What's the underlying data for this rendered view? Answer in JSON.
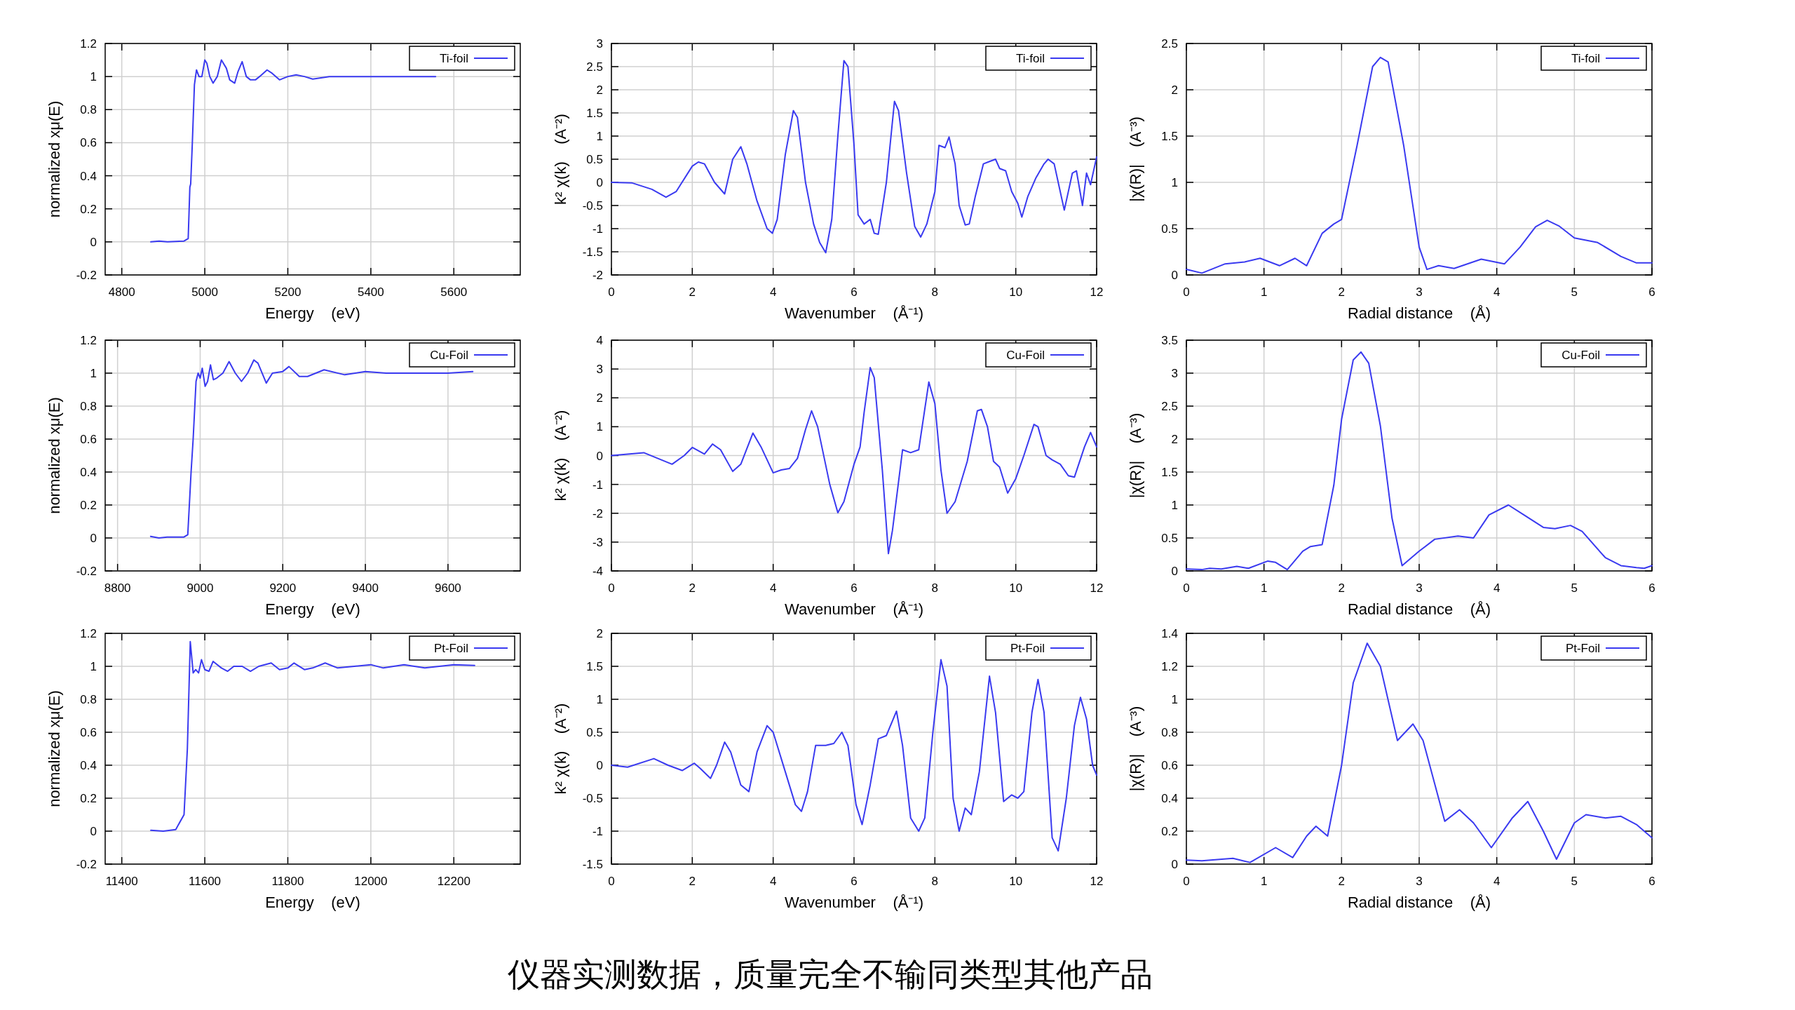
{
  "chart_data": [
    {
      "type": "line",
      "xlabel": "Energy    (eV)",
      "ylabel": "normalized xμ(E)",
      "xlim": [
        4760,
        5760
      ],
      "ylim": [
        -0.2,
        1.2
      ],
      "xticks": [
        4800,
        5000,
        5200,
        5400,
        5600
      ],
      "yticks": [
        -0.2,
        0,
        0.2,
        0.4,
        0.6,
        0.8,
        1,
        1.2
      ],
      "grid": true,
      "legend": "top right",
      "line_style": "solid",
      "x": [
        4870,
        4890,
        4910,
        4950,
        4960,
        4964,
        4966,
        4970,
        4975,
        4980,
        4986,
        4993,
        5000,
        5005,
        5012,
        5020,
        5030,
        5040,
        5052,
        5060,
        5072,
        5080,
        5090,
        5100,
        5110,
        5122,
        5132,
        5150,
        5162,
        5180,
        5200,
        5220,
        5240,
        5260,
        5300,
        5350,
        5400,
        5450,
        5500,
        5556
      ],
      "series": [
        {
          "name": "Ti-foil",
          "color": "#3a3af0",
          "values": [
            0,
            0.005,
            0,
            0.005,
            0.02,
            0.33,
            0.35,
            0.6,
            0.95,
            1.04,
            1.0,
            1.0,
            1.1,
            1.08,
            1.0,
            0.96,
            1.0,
            1.1,
            1.05,
            0.98,
            0.96,
            1.03,
            1.09,
            1.0,
            0.98,
            0.98,
            1.0,
            1.04,
            1.02,
            0.98,
            1.0,
            1.01,
            1.0,
            0.985,
            1.0,
            1.0,
            1.0,
            1.0,
            1.0,
            1.0
          ]
        }
      ]
    },
    {
      "type": "line",
      "xlabel": "Wavenumber    (Å⁻¹)",
      "ylabel": "k² χ(k)    (A⁻²)",
      "xlim": [
        0,
        12
      ],
      "ylim": [
        -2,
        3
      ],
      "xticks": [
        0,
        2,
        4,
        6,
        8,
        10,
        12
      ],
      "yticks": [
        -2,
        -1.5,
        -1,
        -0.5,
        0,
        0.5,
        1,
        1.5,
        2,
        2.5,
        3
      ],
      "grid": true,
      "legend": "top right",
      "line_style": "solid",
      "x": [
        0,
        0.5,
        1.0,
        1.35,
        1.6,
        2.0,
        2.15,
        2.3,
        2.55,
        2.8,
        3.0,
        3.2,
        3.35,
        3.6,
        3.85,
        3.98,
        4.1,
        4.3,
        4.5,
        4.6,
        4.8,
        5.0,
        5.15,
        5.3,
        5.45,
        5.6,
        5.75,
        5.85,
        6.0,
        6.1,
        6.25,
        6.4,
        6.5,
        6.6,
        6.8,
        7.0,
        7.1,
        7.3,
        7.5,
        7.65,
        7.8,
        8.0,
        8.1,
        8.25,
        8.35,
        8.5,
        8.6,
        8.75,
        8.85,
        9.0,
        9.2,
        9.35,
        9.5,
        9.6,
        9.75,
        9.9,
        10.05,
        10.15,
        10.3,
        10.5,
        10.7,
        10.8,
        10.95,
        11.1,
        11.2,
        11.4,
        11.5,
        11.65,
        11.75,
        11.85,
        12
      ],
      "series": [
        {
          "name": "Ti-foil",
          "color": "#3a3af0",
          "values": [
            0,
            -0.01,
            -0.15,
            -0.32,
            -0.2,
            0.35,
            0.44,
            0.4,
            0.0,
            -0.25,
            0.5,
            0.77,
            0.4,
            -0.4,
            -1.0,
            -1.1,
            -0.8,
            0.6,
            1.55,
            1.4,
            0.0,
            -0.9,
            -1.3,
            -1.52,
            -0.8,
            1.0,
            2.63,
            2.5,
            0.8,
            -0.7,
            -0.9,
            -0.8,
            -1.1,
            -1.12,
            0.0,
            1.75,
            1.55,
            0.2,
            -0.95,
            -1.18,
            -0.9,
            -0.2,
            0.8,
            0.75,
            0.98,
            0.4,
            -0.5,
            -0.92,
            -0.9,
            -0.3,
            0.4,
            0.45,
            0.5,
            0.3,
            0.25,
            -0.2,
            -0.45,
            -0.75,
            -0.3,
            0.1,
            0.4,
            0.5,
            0.4,
            -0.2,
            -0.6,
            0.2,
            0.25,
            -0.5,
            0.2,
            -0.05,
            0.55
          ]
        }
      ]
    },
    {
      "type": "line",
      "xlabel": "Radial distance    (Å)",
      "ylabel": "|χ(R)|    (A⁻³)",
      "xlim": [
        0,
        6
      ],
      "ylim": [
        0,
        2.5
      ],
      "xticks": [
        0,
        1,
        2,
        3,
        4,
        5,
        6
      ],
      "yticks": [
        0,
        0.5,
        1,
        1.5,
        2,
        2.5
      ],
      "grid": true,
      "legend": "top right",
      "line_style": "solid",
      "x": [
        0,
        0.2,
        0.5,
        0.75,
        0.95,
        1.2,
        1.4,
        1.55,
        1.75,
        1.9,
        2.0,
        2.2,
        2.4,
        2.5,
        2.6,
        2.8,
        3.0,
        3.1,
        3.25,
        3.45,
        3.8,
        4.1,
        4.3,
        4.5,
        4.65,
        4.8,
        5.0,
        5.3,
        5.6,
        5.8,
        6.0
      ],
      "series": [
        {
          "name": "Ti-foil",
          "color": "#3a3af0",
          "values": [
            0.06,
            0.02,
            0.12,
            0.14,
            0.18,
            0.1,
            0.18,
            0.1,
            0.45,
            0.55,
            0.6,
            1.4,
            2.25,
            2.35,
            2.3,
            1.4,
            0.3,
            0.06,
            0.1,
            0.07,
            0.17,
            0.12,
            0.3,
            0.52,
            0.59,
            0.53,
            0.4,
            0.35,
            0.2,
            0.13,
            0.13
          ]
        }
      ]
    },
    {
      "type": "line",
      "xlabel": "Energy    (eV)",
      "ylabel": "normalized xμ(E)",
      "xlim": [
        8770,
        9775
      ],
      "ylim": [
        -0.2,
        1.2
      ],
      "xticks": [
        8800,
        9000,
        9200,
        9400,
        9600
      ],
      "yticks": [
        -0.2,
        0,
        0.2,
        0.4,
        0.6,
        0.8,
        1,
        1.2
      ],
      "grid": true,
      "legend": "top right",
      "line_style": "solid",
      "x": [
        8880,
        8900,
        8920,
        8960,
        8970,
        8978,
        8983,
        8990,
        8995,
        9000,
        9005,
        9012,
        9018,
        9025,
        9032,
        9040,
        9055,
        9070,
        9085,
        9100,
        9115,
        9130,
        9140,
        9160,
        9175,
        9200,
        9215,
        9240,
        9260,
        9300,
        9350,
        9400,
        9450,
        9500,
        9550,
        9600,
        9660
      ],
      "series": [
        {
          "name": "Cu-Foil",
          "color": "#3a3af0",
          "values": [
            0.01,
            0.0,
            0.005,
            0.005,
            0.02,
            0.4,
            0.6,
            0.95,
            1.0,
            0.97,
            1.03,
            0.92,
            0.95,
            1.05,
            0.96,
            0.97,
            1.0,
            1.07,
            1.0,
            0.95,
            1.0,
            1.08,
            1.06,
            0.94,
            1.0,
            1.01,
            1.04,
            0.98,
            0.98,
            1.02,
            0.99,
            1.01,
            1.0,
            1.0,
            1.0,
            1.0,
            1.01
          ]
        }
      ]
    },
    {
      "type": "line",
      "xlabel": "Wavenumber    (Å⁻¹)",
      "ylabel": "k² χ(k)    (A⁻²)",
      "xlim": [
        0,
        12
      ],
      "ylim": [
        -4,
        4
      ],
      "xticks": [
        0,
        2,
        4,
        6,
        8,
        10,
        12
      ],
      "yticks": [
        -4,
        -3,
        -2,
        -1,
        0,
        1,
        2,
        3,
        4
      ],
      "grid": true,
      "legend": "top right",
      "line_style": "solid",
      "x": [
        0,
        0.8,
        1.5,
        1.8,
        2.0,
        2.3,
        2.5,
        2.7,
        3.0,
        3.2,
        3.5,
        3.7,
        4.0,
        4.2,
        4.4,
        4.6,
        4.8,
        4.95,
        5.1,
        5.4,
        5.6,
        5.75,
        6.0,
        6.15,
        6.25,
        6.4,
        6.5,
        6.7,
        6.85,
        6.95,
        7.2,
        7.4,
        7.6,
        7.85,
        8.0,
        8.15,
        8.3,
        8.5,
        8.8,
        9.05,
        9.15,
        9.3,
        9.45,
        9.6,
        9.8,
        10.0,
        10.2,
        10.45,
        10.55,
        10.75,
        10.9,
        11.1,
        11.3,
        11.45,
        11.7,
        11.85,
        12.0
      ],
      "series": [
        {
          "name": "Cu-Foil",
          "color": "#3a3af0",
          "values": [
            0,
            0.1,
            -0.3,
            0.0,
            0.28,
            0.05,
            0.4,
            0.2,
            -0.55,
            -0.3,
            0.78,
            0.3,
            -0.6,
            -0.5,
            -0.45,
            -0.1,
            0.9,
            1.55,
            1.0,
            -1.0,
            -1.98,
            -1.6,
            -0.3,
            0.3,
            1.5,
            3.05,
            2.7,
            -0.5,
            -3.4,
            -2.6,
            0.2,
            0.1,
            0.2,
            2.55,
            1.8,
            -0.5,
            -2.0,
            -1.6,
            -0.2,
            1.55,
            1.6,
            1.0,
            -0.2,
            -0.4,
            -1.3,
            -0.8,
            0.0,
            1.08,
            1.0,
            0.0,
            -0.15,
            -0.3,
            -0.7,
            -0.75,
            0.3,
            0.8,
            0.3
          ]
        }
      ]
    },
    {
      "type": "line",
      "xlabel": "Radial distance    (Å)",
      "ylabel": "|χ(R)|    (A⁻³)",
      "xlim": [
        0,
        6
      ],
      "ylim": [
        0,
        3.5
      ],
      "xticks": [
        0,
        1,
        2,
        3,
        4,
        5,
        6
      ],
      "yticks": [
        0,
        0.5,
        1,
        1.5,
        2,
        2.5,
        3,
        3.5
      ],
      "grid": true,
      "legend": "top right",
      "line_style": "solid",
      "x": [
        0,
        0.2,
        0.3,
        0.45,
        0.65,
        0.8,
        1.05,
        1.15,
        1.3,
        1.5,
        1.6,
        1.75,
        1.9,
        2.0,
        2.15,
        2.25,
        2.35,
        2.5,
        2.65,
        2.78,
        3.0,
        3.2,
        3.5,
        3.7,
        3.9,
        4.15,
        4.35,
        4.6,
        4.75,
        4.95,
        5.1,
        5.4,
        5.6,
        5.8,
        5.9,
        6.0
      ],
      "series": [
        {
          "name": "Cu-Foil",
          "color": "#3a3af0",
          "values": [
            0.03,
            0.02,
            0.04,
            0.03,
            0.07,
            0.04,
            0.15,
            0.13,
            0.02,
            0.3,
            0.37,
            0.4,
            1.3,
            2.3,
            3.2,
            3.32,
            3.15,
            2.2,
            0.8,
            0.08,
            0.3,
            0.48,
            0.53,
            0.5,
            0.85,
            1.0,
            0.85,
            0.66,
            0.64,
            0.69,
            0.6,
            0.2,
            0.08,
            0.05,
            0.04,
            0.08
          ]
        }
      ]
    },
    {
      "type": "line",
      "xlabel": "Energy    (eV)",
      "ylabel": "normalized xμ(E)",
      "xlim": [
        11360,
        12360
      ],
      "ylim": [
        -0.2,
        1.2
      ],
      "xticks": [
        11400,
        11600,
        11800,
        12000,
        12200
      ],
      "yticks": [
        -0.2,
        0,
        0.2,
        0.4,
        0.6,
        0.8,
        1,
        1.2
      ],
      "grid": true,
      "legend": "top right",
      "line_style": "solid",
      "x": [
        11470,
        11500,
        11530,
        11550,
        11558,
        11565,
        11572,
        11578,
        11585,
        11592,
        11600,
        11610,
        11620,
        11640,
        11655,
        11670,
        11690,
        11710,
        11730,
        11760,
        11780,
        11800,
        11815,
        11840,
        11860,
        11890,
        11920,
        11960,
        12000,
        12030,
        12080,
        12130,
        12200,
        12250
      ],
      "series": [
        {
          "name": "Pt-Foil",
          "color": "#3a3af0",
          "values": [
            0.005,
            0.0,
            0.01,
            0.1,
            0.5,
            1.15,
            0.96,
            0.98,
            0.96,
            1.04,
            0.98,
            0.97,
            1.03,
            0.99,
            0.97,
            1.0,
            1.0,
            0.97,
            1.0,
            1.02,
            0.98,
            0.99,
            1.02,
            0.98,
            0.99,
            1.02,
            0.99,
            1.0,
            1.01,
            0.99,
            1.01,
            0.99,
            1.01,
            1.005
          ]
        }
      ]
    },
    {
      "type": "line",
      "xlabel": "Wavenumber    (Å⁻¹)",
      "ylabel": "k² χ(k)    (A⁻²)",
      "xlim": [
        0,
        12
      ],
      "ylim": [
        -1.5,
        2
      ],
      "xticks": [
        0,
        2,
        4,
        6,
        8,
        10,
        12
      ],
      "yticks": [
        -1.5,
        -1,
        -0.5,
        0,
        0.5,
        1,
        1.5,
        2
      ],
      "grid": true,
      "legend": "top right",
      "line_style": "solid",
      "x": [
        0,
        0.4,
        1.05,
        1.4,
        1.75,
        2.05,
        2.2,
        2.45,
        2.6,
        2.8,
        2.95,
        3.2,
        3.4,
        3.6,
        3.85,
        4.0,
        4.3,
        4.55,
        4.7,
        4.85,
        5.05,
        5.3,
        5.5,
        5.7,
        5.85,
        6.05,
        6.2,
        6.4,
        6.6,
        6.8,
        7.05,
        7.2,
        7.4,
        7.6,
        7.75,
        7.95,
        8.15,
        8.3,
        8.45,
        8.6,
        8.75,
        8.9,
        9.1,
        9.35,
        9.5,
        9.7,
        9.9,
        10.05,
        10.2,
        10.4,
        10.55,
        10.7,
        10.9,
        11.05,
        11.25,
        11.45,
        11.6,
        11.75,
        11.9,
        12.0
      ],
      "series": [
        {
          "name": "Pt-Foil",
          "color": "#3a3af0",
          "values": [
            0,
            -0.03,
            0.1,
            0.0,
            -0.08,
            0.03,
            -0.05,
            -0.2,
            0.0,
            0.35,
            0.2,
            -0.3,
            -0.4,
            0.2,
            0.6,
            0.5,
            -0.1,
            -0.6,
            -0.7,
            -0.4,
            0.3,
            0.3,
            0.33,
            0.5,
            0.3,
            -0.6,
            -0.9,
            -0.3,
            0.4,
            0.45,
            0.82,
            0.3,
            -0.8,
            -1.0,
            -0.8,
            0.5,
            1.6,
            1.2,
            -0.5,
            -1.0,
            -0.65,
            -0.75,
            -0.1,
            1.35,
            0.8,
            -0.55,
            -0.45,
            -0.5,
            -0.4,
            0.8,
            1.3,
            0.8,
            -1.1,
            -1.3,
            -0.5,
            0.6,
            1.03,
            0.7,
            0.0,
            -0.15
          ]
        }
      ]
    },
    {
      "type": "line",
      "xlabel": "Radial distance    (Å)",
      "ylabel": "|χ(R)|    (A⁻³)",
      "xlim": [
        0,
        6
      ],
      "ylim": [
        0,
        1.4
      ],
      "xticks": [
        0,
        1,
        2,
        3,
        4,
        5,
        6
      ],
      "yticks": [
        0,
        0.2,
        0.4,
        0.6,
        0.8,
        1,
        1.2,
        1.4
      ],
      "grid": true,
      "legend": "top right",
      "line_style": "solid",
      "x": [
        0,
        0.2,
        0.6,
        0.82,
        1.15,
        1.37,
        1.55,
        1.67,
        1.82,
        2.0,
        2.15,
        2.33,
        2.5,
        2.72,
        2.92,
        3.05,
        3.33,
        3.52,
        3.7,
        3.93,
        4.2,
        4.4,
        4.6,
        4.77,
        5.0,
        5.15,
        5.4,
        5.6,
        5.8,
        6.0
      ],
      "series": [
        {
          "name": "Pt-Foil",
          "color": "#3a3af0",
          "values": [
            0.025,
            0.02,
            0.035,
            0.01,
            0.1,
            0.04,
            0.17,
            0.23,
            0.17,
            0.6,
            1.1,
            1.34,
            1.2,
            0.75,
            0.85,
            0.75,
            0.26,
            0.33,
            0.25,
            0.1,
            0.28,
            0.38,
            0.2,
            0.03,
            0.25,
            0.3,
            0.28,
            0.29,
            0.24,
            0.16
          ]
        }
      ]
    },
    {
      "type": "other",
      "annotations": [
        "仪器实测数据，质量完全不输同类型其他产品"
      ]
    }
  ]
}
